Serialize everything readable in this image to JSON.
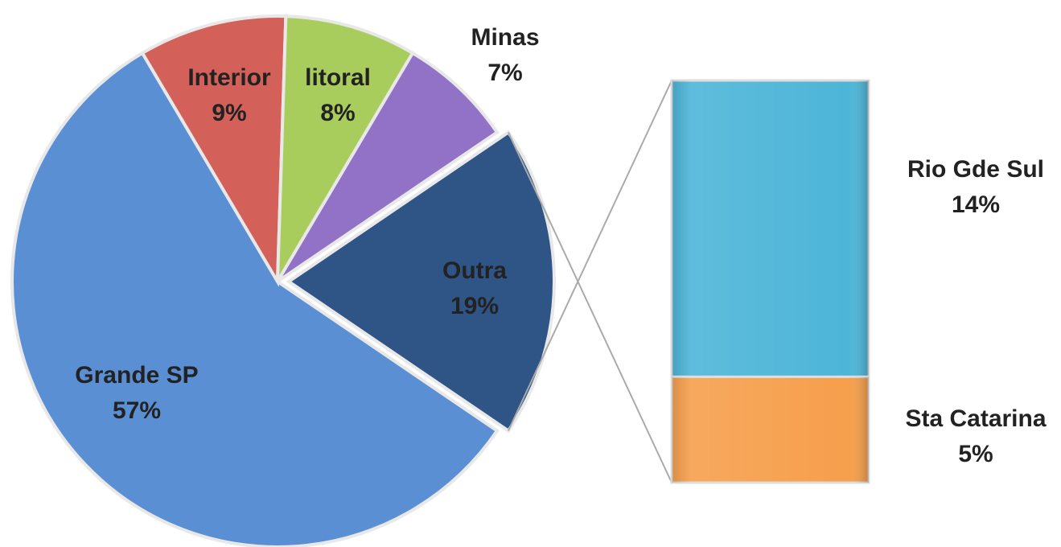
{
  "chart_data": [
    {
      "type": "pie",
      "categories": [
        "Grande SP",
        "Interior",
        "litoral",
        "Minas",
        "Outra"
      ],
      "values": [
        57,
        9,
        8,
        7,
        19
      ],
      "value_labels": [
        "57%",
        "9%",
        "8%",
        "7%",
        "19%"
      ],
      "colors": [
        "#5b8fd4",
        "#d4605a",
        "#a9cd5c",
        "#9272c6",
        "#2f5486"
      ]
    },
    {
      "type": "bar",
      "categories": [
        "Rio Gde Sul",
        "Sta Catarina"
      ],
      "values": [
        14,
        5
      ],
      "value_labels": [
        "14%",
        "5%"
      ],
      "colors": [
        "#4db5d8",
        "#f69f4c"
      ]
    }
  ]
}
